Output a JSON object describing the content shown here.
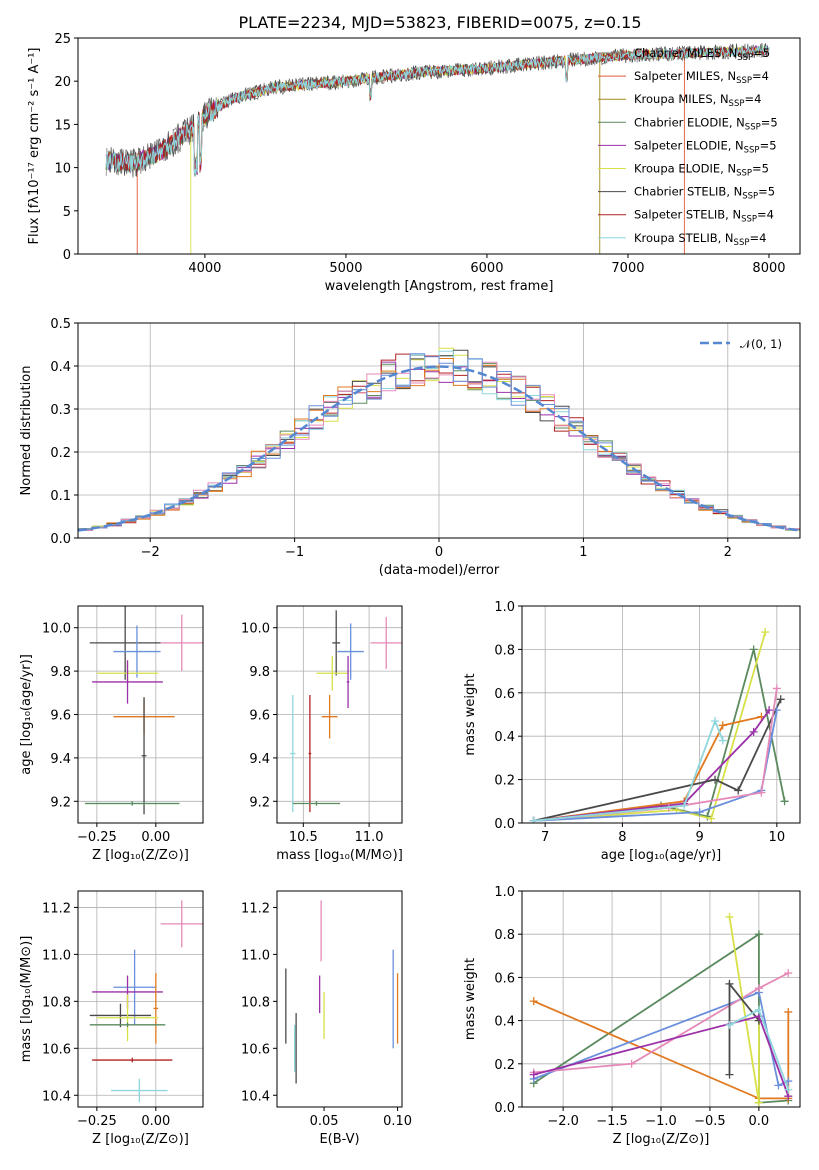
{
  "colors": {
    "Chabrier MILES": "#777777",
    "Salpeter MILES": "#e05a3a",
    "Kroupa MILES": "#a08a1a",
    "Chabrier ELODIE": "#5a8a5e",
    "Salpeter ELODIE": "#9b30a8",
    "Kroupa ELODIE": "#d8e048",
    "Chabrier STELIB": "#4a4a4a",
    "Salpeter STELIB": "#b22222",
    "Kroupa STELIB": "#8fd6dd",
    "blue": "#6a8fdc",
    "orange": "#e0791f",
    "pink": "#e58ab8",
    "normal": "#5588d0"
  },
  "chart_data": [
    {
      "id": "spectrum",
      "type": "line",
      "title": "PLATE=2234, MJD=53823, FIBERID=0075, z=0.15",
      "xlabel": "wavelength [Angstrom, rest frame]",
      "ylabel": "Flux [fλ10⁻¹⁷ erg cm⁻² s⁻¹ A⁻¹]",
      "xlim": [
        3100,
        8220
      ],
      "ylim": [
        0,
        25
      ],
      "xticks": [
        4000,
        5000,
        6000,
        7000,
        8000
      ],
      "yticks": [
        0,
        5,
        10,
        15,
        20,
        25
      ],
      "grid": false,
      "legend_location": "right",
      "legend": [
        {
          "model": "Chabrier MILES",
          "n": "5"
        },
        {
          "model": "Salpeter MILES",
          "n": "4"
        },
        {
          "model": "Kroupa MILES",
          "n": "4"
        },
        {
          "model": "Chabrier ELODIE",
          "n": "5"
        },
        {
          "model": "Salpeter ELODIE",
          "n": "5"
        },
        {
          "model": "Kroupa ELODIE",
          "n": "5"
        },
        {
          "model": "Chabrier STELIB",
          "n": "5"
        },
        {
          "model": "Salpeter STELIB",
          "n": "4"
        },
        {
          "model": "Kroupa STELIB",
          "n": "4"
        }
      ],
      "continuum_x": [
        3300,
        3500,
        3700,
        3900,
        4000,
        4200,
        4500,
        5000,
        5500,
        6000,
        6500,
        7000,
        7500,
        8000
      ],
      "continuum_y": [
        10.8,
        10.5,
        12.0,
        14.5,
        16.0,
        18.0,
        19.3,
        20.0,
        21.0,
        21.5,
        22.3,
        23.0,
        23.3,
        23.6
      ]
    },
    {
      "id": "residuals",
      "type": "histogram",
      "xlabel": "(data-model)/error",
      "ylabel": "Normed distribution",
      "xlim": [
        -2.5,
        2.5
      ],
      "ylim": [
        0,
        0.5
      ],
      "xticks": [
        -2,
        -1,
        0,
        1,
        2
      ],
      "yticks": [
        0.0,
        0.1,
        0.2,
        0.3,
        0.4,
        0.5
      ],
      "grid": true,
      "legend_location": "top-right",
      "legend": [
        "𝒩(0, 1)"
      ],
      "bin_width": 0.1
    },
    {
      "id": "age_vs_Z",
      "type": "errorbar",
      "xlabel": "Z [log₁₀(Z/Z⊙)]",
      "ylabel": "age  [log₁₀(age/yr)]",
      "xlim": [
        -0.33,
        0.2
      ],
      "ylim": [
        9.1,
        10.1
      ],
      "xticks": [
        -0.25,
        0.0
      ],
      "yticks": [
        9.2,
        9.4,
        9.6,
        9.8,
        10.0
      ],
      "grid": true,
      "points": [
        {
          "c": "pink",
          "x": 0.11,
          "xe": 0.09,
          "y": 9.93,
          "ye": 0.13
        },
        {
          "c": "Chabrier STELIB",
          "x": -0.13,
          "xe": 0.15,
          "y": 9.93,
          "ye": 0.17
        },
        {
          "c": "blue",
          "x": -0.08,
          "xe": 0.1,
          "y": 9.89,
          "ye": 0.12
        },
        {
          "c": "Kroupa ELODIE",
          "x": -0.12,
          "xe": 0.13,
          "y": 9.79,
          "ye": 0.05
        },
        {
          "c": "Salpeter ELODIE",
          "x": -0.12,
          "xe": 0.15,
          "y": 9.75,
          "ye": 0.1
        },
        {
          "c": "orange",
          "x": -0.05,
          "xe": 0.13,
          "y": 9.59,
          "ye": 0.08
        },
        {
          "c": "Chabrier STELIB",
          "x": -0.05,
          "xe": 0.01,
          "y": 9.41,
          "ye": 0.27
        },
        {
          "c": "Kroupa STELIB",
          "x": -0.1,
          "xe": 0.2,
          "y": 9.19,
          "ye": 0.01
        },
        {
          "c": "Chabrier ELODIE",
          "x": -0.1,
          "xe": 0.2,
          "y": 9.19,
          "ye": 0.01
        }
      ]
    },
    {
      "id": "age_vs_mass",
      "type": "errorbar",
      "xlabel": "mass [log₁₀(M/M⊙)]",
      "ylabel": "",
      "xlim": [
        10.3,
        11.25
      ],
      "ylim": [
        9.1,
        10.1
      ],
      "xticks": [
        10.5,
        11.0
      ],
      "yticks": [
        9.2,
        9.4,
        9.6,
        9.8,
        10.0
      ],
      "grid": true,
      "points": [
        {
          "c": "pink",
          "x": 11.13,
          "xe": 0.12,
          "y": 9.93,
          "ye": 0.12
        },
        {
          "c": "Chabrier STELIB",
          "x": 10.75,
          "xe": 0.03,
          "y": 9.93,
          "ye": 0.15
        },
        {
          "c": "blue",
          "x": 10.86,
          "xe": 0.1,
          "y": 9.89,
          "ye": 0.13
        },
        {
          "c": "Kroupa ELODIE",
          "x": 10.72,
          "xe": 0.12,
          "y": 9.79,
          "ye": 0.08
        },
        {
          "c": "Salpeter ELODIE",
          "x": 10.84,
          "xe": 0.01,
          "y": 9.75,
          "ye": 0.12
        },
        {
          "c": "orange",
          "x": 10.7,
          "xe": 0.06,
          "y": 9.59,
          "ye": 0.1
        },
        {
          "c": "Salpeter STELIB",
          "x": 10.55,
          "xe": 0.01,
          "y": 9.42,
          "ye": 0.27
        },
        {
          "c": "Kroupa STELIB",
          "x": 10.42,
          "xe": 0.02,
          "y": 9.42,
          "ye": 0.27
        },
        {
          "c": "Chabrier ELODIE",
          "x": 10.6,
          "xe": 0.18,
          "y": 9.19,
          "ye": 0.01
        }
      ]
    },
    {
      "id": "weight_vs_age",
      "type": "line",
      "xlabel": "age  [log₁₀(age/yr)]",
      "ylabel": "mass weight",
      "xlim": [
        6.7,
        10.3
      ],
      "ylim": [
        0,
        1.0
      ],
      "xticks": [
        7,
        8,
        9,
        10
      ],
      "yticks": [
        0.0,
        0.2,
        0.4,
        0.6,
        0.8,
        1.0
      ],
      "grid": true,
      "series": [
        {
          "c": "Chabrier ELODIE",
          "x": [
            6.85,
            8.5,
            9.1,
            9.7,
            10.1
          ],
          "y": [
            0.01,
            0.08,
            0.03,
            0.8,
            0.1
          ]
        },
        {
          "c": "Kroupa ELODIE",
          "x": [
            6.85,
            8.7,
            9.15,
            9.85
          ],
          "y": [
            0.01,
            0.06,
            0.02,
            0.88
          ]
        },
        {
          "c": "orange",
          "x": [
            6.85,
            8.8,
            9.3,
            9.8
          ],
          "y": [
            0.01,
            0.1,
            0.45,
            0.49
          ]
        },
        {
          "c": "Salpeter ELODIE",
          "x": [
            6.85,
            8.8,
            9.7,
            9.9
          ],
          "y": [
            0.01,
            0.09,
            0.42,
            0.52
          ]
        },
        {
          "c": "Chabrier STELIB",
          "x": [
            6.85,
            9.2,
            9.5,
            10.05
          ],
          "y": [
            0.01,
            0.2,
            0.15,
            0.57
          ]
        },
        {
          "c": "blue",
          "x": [
            6.85,
            9.0,
            9.8,
            10.0
          ],
          "y": [
            0.01,
            0.05,
            0.15,
            0.52
          ]
        },
        {
          "c": "pink",
          "x": [
            6.85,
            8.6,
            9.8,
            10.0
          ],
          "y": [
            0.01,
            0.07,
            0.14,
            0.62
          ]
        },
        {
          "c": "Kroupa STELIB",
          "x": [
            6.85,
            8.8,
            9.2,
            9.3
          ],
          "y": [
            0.01,
            0.08,
            0.47,
            0.38
          ]
        }
      ]
    },
    {
      "id": "mass_vs_Z",
      "type": "errorbar",
      "xlabel": "Z [log₁₀(Z/Z⊙)]",
      "ylabel": "mass [log₁₀(M/M⊙)]",
      "xlim": [
        -0.33,
        0.2
      ],
      "ylim": [
        10.35,
        11.27
      ],
      "xticks": [
        -0.25,
        0.0
      ],
      "yticks": [
        10.4,
        10.6,
        10.8,
        11.0,
        11.2
      ],
      "grid": true,
      "points": [
        {
          "c": "pink",
          "x": 0.11,
          "xe": 0.09,
          "y": 11.13,
          "ye": 0.1
        },
        {
          "c": "blue",
          "x": -0.09,
          "xe": 0.09,
          "y": 10.86,
          "ye": 0.16
        },
        {
          "c": "Salpeter ELODIE",
          "x": -0.12,
          "xe": 0.15,
          "y": 10.84,
          "ye": 0.07
        },
        {
          "c": "orange",
          "x": 0.0,
          "xe": 0.01,
          "y": 10.77,
          "ye": 0.15
        },
        {
          "c": "Chabrier STELIB",
          "x": -0.15,
          "xe": 0.13,
          "y": 10.74,
          "ye": 0.05
        },
        {
          "c": "Kroupa ELODIE",
          "x": -0.12,
          "xe": 0.13,
          "y": 10.73,
          "ye": 0.1
        },
        {
          "c": "Chabrier ELODIE",
          "x": -0.12,
          "xe": 0.16,
          "y": 10.7,
          "ye": 0.01
        },
        {
          "c": "Salpeter STELIB",
          "x": -0.1,
          "xe": 0.17,
          "y": 10.55,
          "ye": 0.01
        },
        {
          "c": "Kroupa STELIB",
          "x": -0.07,
          "xe": 0.12,
          "y": 10.42,
          "ye": 0.05
        }
      ]
    },
    {
      "id": "mass_vs_ebv",
      "type": "errorbar",
      "xlabel": "E(B-V)",
      "ylabel": "",
      "xlim": [
        0.018,
        0.103
      ],
      "ylim": [
        10.35,
        11.27
      ],
      "xticks": [
        0.05,
        0.1
      ],
      "yticks": [
        10.4,
        10.6,
        10.8,
        11.0,
        11.2
      ],
      "grid": false,
      "points": [
        {
          "c": "pink",
          "x": 0.048,
          "xe": 0,
          "y": 11.1,
          "ye": 0.13
        },
        {
          "c": "Chabrier STELIB",
          "x": 0.024,
          "xe": 0,
          "y": 10.78,
          "ye": 0.16
        },
        {
          "c": "blue",
          "x": 0.097,
          "xe": 0,
          "y": 10.81,
          "ye": 0.21
        },
        {
          "c": "orange",
          "x": 0.1,
          "xe": 0,
          "y": 10.77,
          "ye": 0.15
        },
        {
          "c": "Salpeter ELODIE",
          "x": 0.047,
          "xe": 0,
          "y": 10.83,
          "ye": 0.08
        },
        {
          "c": "Kroupa ELODIE",
          "x": 0.05,
          "xe": 0,
          "y": 10.74,
          "ye": 0.1
        },
        {
          "c": "Chabrier STELIB",
          "x": 0.031,
          "xe": 0,
          "y": 10.6,
          "ye": 0.15
        },
        {
          "c": "Kroupa STELIB",
          "x": 0.03,
          "xe": 0,
          "y": 10.6,
          "ye": 0.1
        }
      ]
    },
    {
      "id": "weight_vs_Z",
      "type": "line",
      "xlabel": "Z [log₁₀(Z/Z⊙)]",
      "ylabel": "mass weight",
      "xlim": [
        -2.42,
        0.42
      ],
      "ylim": [
        0,
        1.0
      ],
      "xticks": [
        -2.0,
        -1.5,
        -1.0,
        -0.5,
        0.0
      ],
      "yticks": [
        0.0,
        0.2,
        0.4,
        0.6,
        0.8,
        1.0
      ],
      "grid": true,
      "series": [
        {
          "c": "Chabrier ELODIE",
          "x": [
            -2.3,
            0.0,
            0.0,
            0.3
          ],
          "y": [
            0.11,
            0.8,
            0.02,
            0.03
          ]
        },
        {
          "c": "orange",
          "x": [
            -2.3,
            0.0,
            0.3,
            0.3
          ],
          "y": [
            0.49,
            0.04,
            0.04,
            0.44
          ]
        },
        {
          "c": "blue",
          "x": [
            -2.3,
            0.0,
            0.2,
            0.3
          ],
          "y": [
            0.13,
            0.53,
            0.1,
            0.12
          ]
        },
        {
          "c": "pink",
          "x": [
            -2.3,
            -1.3,
            0.0,
            0.3
          ],
          "y": [
            0.16,
            0.2,
            0.55,
            0.62
          ]
        },
        {
          "c": "Kroupa ELODIE",
          "x": [
            -0.3,
            0.0,
            0.0
          ],
          "y": [
            0.88,
            0.02,
            0.4
          ]
        },
        {
          "c": "Chabrier STELIB",
          "x": [
            -0.3,
            -0.3,
            0.0
          ],
          "y": [
            0.15,
            0.57,
            0.4
          ]
        },
        {
          "c": "Salpeter ELODIE",
          "x": [
            -2.3,
            0.0,
            0.3
          ],
          "y": [
            0.15,
            0.42,
            0.05
          ]
        },
        {
          "c": "Kroupa STELIB",
          "x": [
            -0.3,
            0.0,
            0.3
          ],
          "y": [
            0.38,
            0.45,
            0.08
          ]
        }
      ]
    }
  ]
}
